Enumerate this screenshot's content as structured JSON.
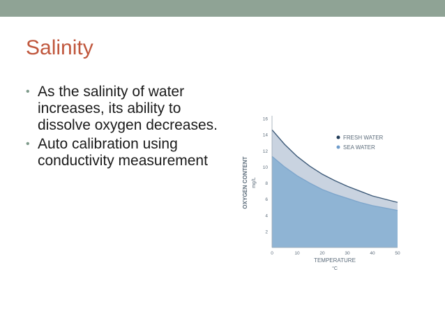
{
  "slide": {
    "title": "Salinity",
    "bullets": [
      "As the salinity of water increases, its ability to dissolve oxygen decreases.",
      "Auto calibration using conductivity measurement"
    ]
  },
  "colors": {
    "top_band": "#8fa395",
    "title": "#c0573d",
    "fresh_water_fill": "#c9d3e0",
    "sea_water_fill": "#8fb4d4",
    "fresh_water_legend": "#1f3a56",
    "sea_water_legend": "#6e9ccb"
  },
  "chart_data": {
    "type": "area",
    "xlabel": "TEMPERATURE",
    "xunit": "°C",
    "ylabel": "OXYGEN CONTENT",
    "yunit": "mg/L",
    "xlim": [
      0,
      50
    ],
    "ylim": [
      0,
      16
    ],
    "x_ticks": [
      "0",
      "10",
      "20",
      "30",
      "40",
      "50"
    ],
    "y_ticks": [
      "2",
      "4",
      "6",
      "8",
      "10",
      "12",
      "14",
      "16"
    ],
    "legend_position": "top-right",
    "series": [
      {
        "name": "FRESH WATER",
        "x": [
          0,
          5,
          10,
          15,
          20,
          25,
          30,
          35,
          40,
          45,
          50
        ],
        "y": [
          14.6,
          12.8,
          11.3,
          10.1,
          9.1,
          8.3,
          7.6,
          7.0,
          6.4,
          6.0,
          5.6
        ]
      },
      {
        "name": "SEA WATER",
        "x": [
          0,
          5,
          10,
          15,
          20,
          25,
          30,
          35,
          40,
          45,
          50
        ],
        "y": [
          11.3,
          10.0,
          8.9,
          8.0,
          7.2,
          6.6,
          6.1,
          5.6,
          5.2,
          4.9,
          4.6
        ]
      }
    ]
  }
}
